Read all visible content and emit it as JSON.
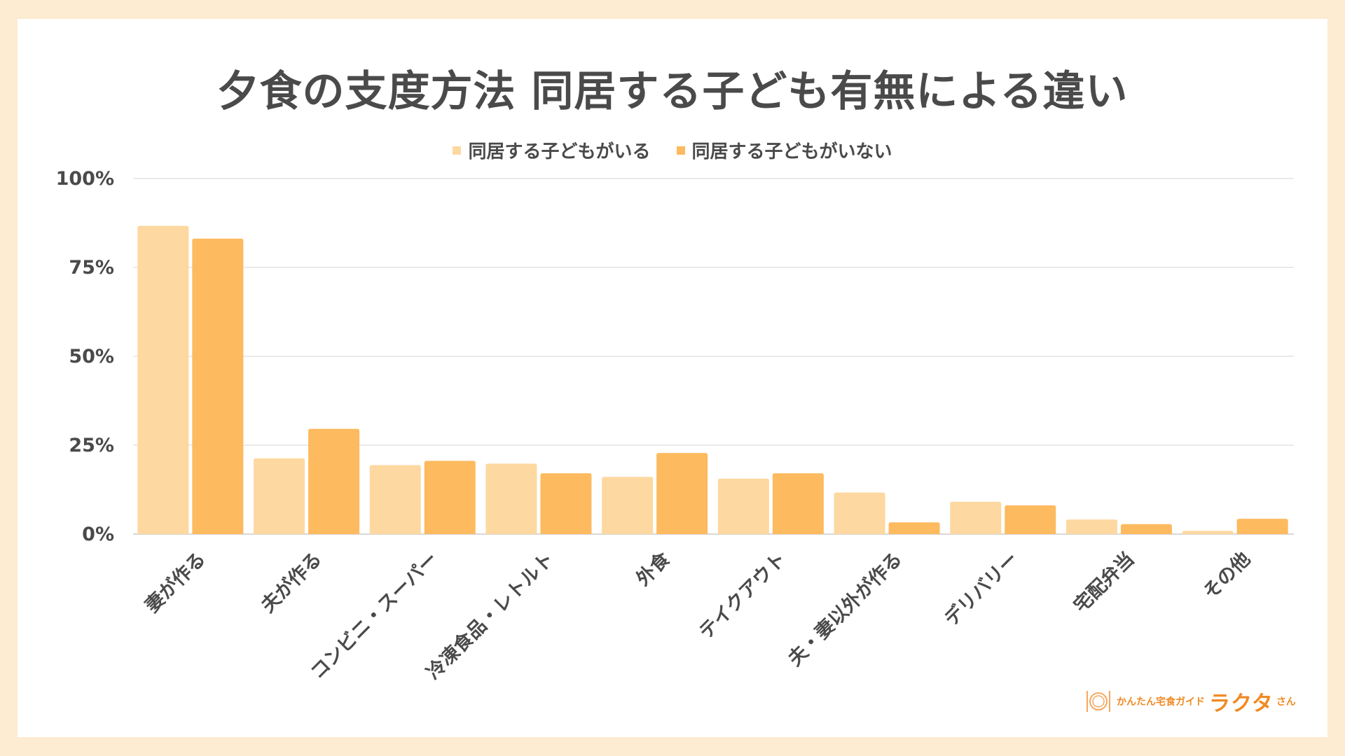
{
  "chart_data": {
    "type": "bar",
    "title": "夕食の支度方法 同居する子ども有無による違い",
    "categories": [
      "妻が作る",
      "夫が作る",
      "コンビニ・スーパー",
      "冷凍食品・レトルト",
      "外食",
      "テイクアウト",
      "夫・妻以外が作る",
      "デリバリー",
      "宅配弁当",
      "その他"
    ],
    "series": [
      {
        "name": "同居する子どもがいる",
        "color": "#fdd8a0",
        "values": [
          86.7,
          21.3,
          19.4,
          19.8,
          16.1,
          15.6,
          11.7,
          9.1,
          4.1,
          0.9
        ]
      },
      {
        "name": "同居する子どもがいない",
        "color": "#fdba5f",
        "values": [
          83.1,
          29.6,
          20.6,
          17.1,
          22.8,
          17.1,
          3.3,
          8.1,
          2.8,
          4.3
        ]
      }
    ],
    "yticks": [
      "0%",
      "25%",
      "50%",
      "75%",
      "100%"
    ],
    "ylim": [
      0,
      100
    ],
    "xlabel": "",
    "ylabel": "",
    "grid": true,
    "legend_position": "top-center"
  },
  "logo": {
    "sub": "かんたん宅食ガイド",
    "main": "ラクタ",
    "suffix": "さん"
  }
}
